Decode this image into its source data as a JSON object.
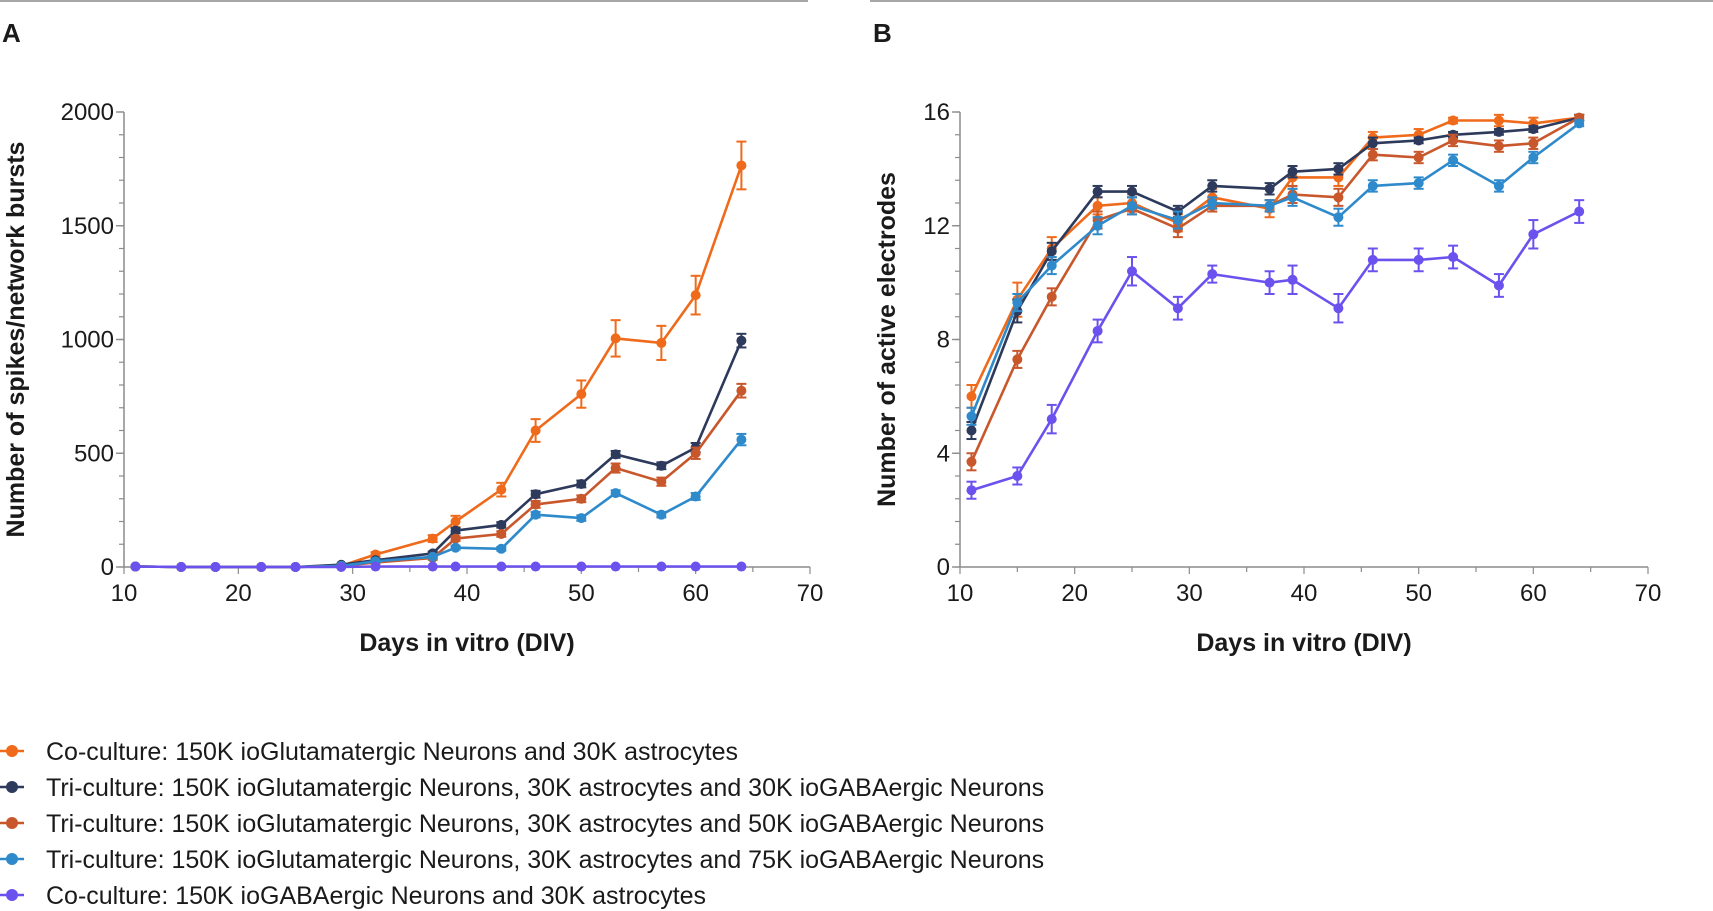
{
  "chart_data": [
    {
      "panel": "A",
      "type": "line",
      "title": "",
      "xlabel": "Days in vitro (DIV)",
      "ylabel": "Number of spikes/network bursts",
      "xlim": [
        10,
        70
      ],
      "ylim": [
        0,
        2000
      ],
      "xticks": [
        "10",
        "20",
        "30",
        "40",
        "50",
        "60",
        "70"
      ],
      "yticks": [
        "0",
        "500",
        "1000",
        "1500",
        "2000"
      ],
      "grid": false,
      "series": [
        {
          "name": "Co-culture: 150K ioGlutamatergic Neurons and 30K astrocytes",
          "color": "#ef6a1a",
          "x": [
            11,
            15,
            18,
            22,
            25,
            29,
            32,
            37,
            39,
            43,
            46,
            50,
            53,
            57,
            60,
            64
          ],
          "y": [
            2,
            0,
            0,
            0,
            0,
            5,
            55,
            125,
            200,
            340,
            600,
            760,
            1005,
            985,
            1195,
            1765
          ],
          "err": [
            0,
            0,
            0,
            0,
            0,
            0,
            10,
            15,
            25,
            30,
            50,
            60,
            80,
            75,
            85,
            105
          ]
        },
        {
          "name": "Tri-culture: 150K ioGlutamatergic Neurons, 30K astrocytes and 30K ioGABAergic Neurons",
          "color": "#2d3a5c",
          "x": [
            11,
            15,
            18,
            22,
            25,
            29,
            32,
            37,
            39,
            43,
            46,
            50,
            53,
            57,
            60,
            64
          ],
          "y": [
            2,
            0,
            0,
            0,
            0,
            10,
            30,
            60,
            160,
            185,
            320,
            365,
            495,
            445,
            525,
            995
          ],
          "err": [
            0,
            0,
            0,
            0,
            0,
            0,
            5,
            8,
            12,
            12,
            15,
            15,
            15,
            15,
            20,
            30
          ]
        },
        {
          "name": "Tri-culture: 150K ioGlutamatergic Neurons, 30K astrocytes and 50K ioGABAergic Neurons",
          "color": "#c8582c",
          "x": [
            11,
            15,
            18,
            22,
            25,
            29,
            32,
            37,
            39,
            43,
            46,
            50,
            53,
            57,
            60,
            64
          ],
          "y": [
            2,
            0,
            0,
            0,
            0,
            5,
            20,
            40,
            125,
            145,
            275,
            300,
            435,
            375,
            500,
            775
          ],
          "err": [
            0,
            0,
            0,
            0,
            0,
            0,
            5,
            8,
            10,
            12,
            15,
            15,
            20,
            18,
            25,
            30
          ]
        },
        {
          "name": "Tri-culture: 150K ioGlutamatergic Neurons, 30K astrocytes and 75K ioGABAergic Neurons",
          "color": "#2e8acb",
          "x": [
            11,
            15,
            18,
            22,
            25,
            29,
            32,
            37,
            39,
            43,
            46,
            50,
            53,
            57,
            60,
            64
          ],
          "y": [
            2,
            0,
            0,
            0,
            0,
            5,
            25,
            45,
            85,
            80,
            230,
            215,
            325,
            230,
            310,
            560
          ],
          "err": [
            0,
            0,
            0,
            0,
            0,
            0,
            5,
            5,
            8,
            8,
            12,
            12,
            12,
            12,
            15,
            25
          ]
        },
        {
          "name": "Co-culture: 150K ioGABAergic Neurons and 30K astrocytes",
          "color": "#6b52ee",
          "x": [
            11,
            15,
            18,
            22,
            25,
            29,
            32,
            37,
            39,
            43,
            46,
            50,
            53,
            57,
            60,
            64
          ],
          "y": [
            2,
            0,
            0,
            0,
            0,
            0,
            2,
            2,
            2,
            2,
            2,
            2,
            2,
            2,
            2,
            2
          ],
          "err": [
            0,
            0,
            0,
            0,
            0,
            0,
            0,
            0,
            0,
            0,
            0,
            0,
            0,
            0,
            0,
            0
          ]
        }
      ]
    },
    {
      "panel": "B",
      "type": "line",
      "title": "",
      "xlabel": "Days in vitro (DIV)",
      "ylabel": "Number of active electrodes",
      "xlim": [
        10,
        70
      ],
      "ylim": [
        0,
        16
      ],
      "xticks": [
        "10",
        "20",
        "30",
        "40",
        "50",
        "60",
        "70"
      ],
      "yticks": [
        "0",
        "4",
        "8",
        "12",
        "16"
      ],
      "grid": false,
      "series": [
        {
          "name": "Co-culture: 150K ioGlutamatergic Neurons and 30K astrocytes",
          "color": "#ef6a1a",
          "x": [
            11,
            15,
            18,
            22,
            25,
            29,
            32,
            37,
            39,
            43,
            46,
            50,
            53,
            57,
            60,
            64
          ],
          "y": [
            6.0,
            9.4,
            11.2,
            12.7,
            12.8,
            12.1,
            13.0,
            12.6,
            13.7,
            13.7,
            15.1,
            15.2,
            15.7,
            15.7,
            15.6,
            15.8
          ],
          "err": [
            0.4,
            0.6,
            0.4,
            0.3,
            0.3,
            0.3,
            0.3,
            0.3,
            0.4,
            0.3,
            0.2,
            0.2,
            0.1,
            0.2,
            0.2,
            0.1
          ]
        },
        {
          "name": "Tri-culture: 150K ioGlutamatergic Neurons, 30K astrocytes and 30K ioGABAergic Neurons",
          "color": "#2d3a5c",
          "x": [
            11,
            15,
            18,
            22,
            25,
            29,
            32,
            37,
            39,
            43,
            46,
            50,
            53,
            57,
            60,
            64
          ],
          "y": [
            4.8,
            9.0,
            11.1,
            13.2,
            13.2,
            12.5,
            13.4,
            13.3,
            13.9,
            14.0,
            14.9,
            15.0,
            15.2,
            15.3,
            15.4,
            15.8
          ],
          "err": [
            0.3,
            0.4,
            0.3,
            0.2,
            0.2,
            0.2,
            0.2,
            0.2,
            0.2,
            0.2,
            0.2,
            0.1,
            0.1,
            0.1,
            0.1,
            0.1
          ]
        },
        {
          "name": "Tri-culture: 150K ioGlutamatergic Neurons, 30K astrocytes and 50K ioGABAergic Neurons",
          "color": "#c8582c",
          "x": [
            11,
            15,
            18,
            22,
            25,
            29,
            32,
            37,
            39,
            43,
            46,
            50,
            53,
            57,
            60,
            64
          ],
          "y": [
            3.7,
            7.3,
            9.5,
            12.2,
            12.6,
            11.9,
            12.7,
            12.7,
            13.1,
            13.0,
            14.5,
            14.4,
            15.0,
            14.8,
            14.9,
            15.8
          ],
          "err": [
            0.3,
            0.3,
            0.3,
            0.3,
            0.2,
            0.3,
            0.2,
            0.2,
            0.3,
            0.3,
            0.2,
            0.2,
            0.2,
            0.2,
            0.2,
            0.1
          ]
        },
        {
          "name": "Tri-culture: 150K ioGlutamatergic Neurons, 30K astrocytes and 75K ioGABAergic Neurons",
          "color": "#2e8acb",
          "x": [
            11,
            15,
            18,
            22,
            25,
            29,
            32,
            37,
            39,
            43,
            46,
            50,
            53,
            57,
            60,
            64
          ],
          "y": [
            5.3,
            9.3,
            10.6,
            12.0,
            12.7,
            12.2,
            12.8,
            12.7,
            13.0,
            12.3,
            13.4,
            13.5,
            14.3,
            13.4,
            14.4,
            15.6
          ],
          "err": [
            0.3,
            0.3,
            0.3,
            0.3,
            0.3,
            0.3,
            0.2,
            0.2,
            0.3,
            0.3,
            0.2,
            0.2,
            0.2,
            0.2,
            0.2,
            0.1
          ]
        },
        {
          "name": "Co-culture: 150K ioGABAergic Neurons and 30K astrocytes",
          "color": "#6b52ee",
          "x": [
            11,
            15,
            18,
            22,
            25,
            29,
            32,
            37,
            39,
            43,
            46,
            50,
            53,
            57,
            60,
            64
          ],
          "y": [
            2.7,
            3.2,
            5.2,
            8.3,
            10.4,
            9.1,
            10.3,
            10.0,
            10.1,
            9.1,
            10.8,
            10.8,
            10.9,
            9.9,
            11.7,
            12.5
          ],
          "err": [
            0.3,
            0.3,
            0.5,
            0.4,
            0.5,
            0.4,
            0.3,
            0.4,
            0.5,
            0.5,
            0.4,
            0.4,
            0.4,
            0.4,
            0.5,
            0.4
          ]
        }
      ]
    }
  ],
  "panels": {
    "a": {
      "letter": "A"
    },
    "b": {
      "letter": "B"
    }
  },
  "legend": [
    {
      "label": "Co-culture: 150K ioGlutamatergic Neurons and 30K astrocytes",
      "color": "#ef6a1a"
    },
    {
      "label": "Tri-culture: 150K ioGlutamatergic Neurons, 30K astrocytes and 30K ioGABAergic Neurons",
      "color": "#2d3a5c"
    },
    {
      "label": "Tri-culture: 150K ioGlutamatergic Neurons, 30K astrocytes and 50K ioGABAergic Neurons",
      "color": "#c8582c"
    },
    {
      "label": "Tri-culture: 150K ioGlutamatergic Neurons, 30K astrocytes and 75K ioGABAergic Neurons",
      "color": "#2e8acb"
    },
    {
      "label": "Co-culture: 150K ioGABAergic Neurons and 30K astrocytes",
      "color": "#6b52ee"
    }
  ]
}
